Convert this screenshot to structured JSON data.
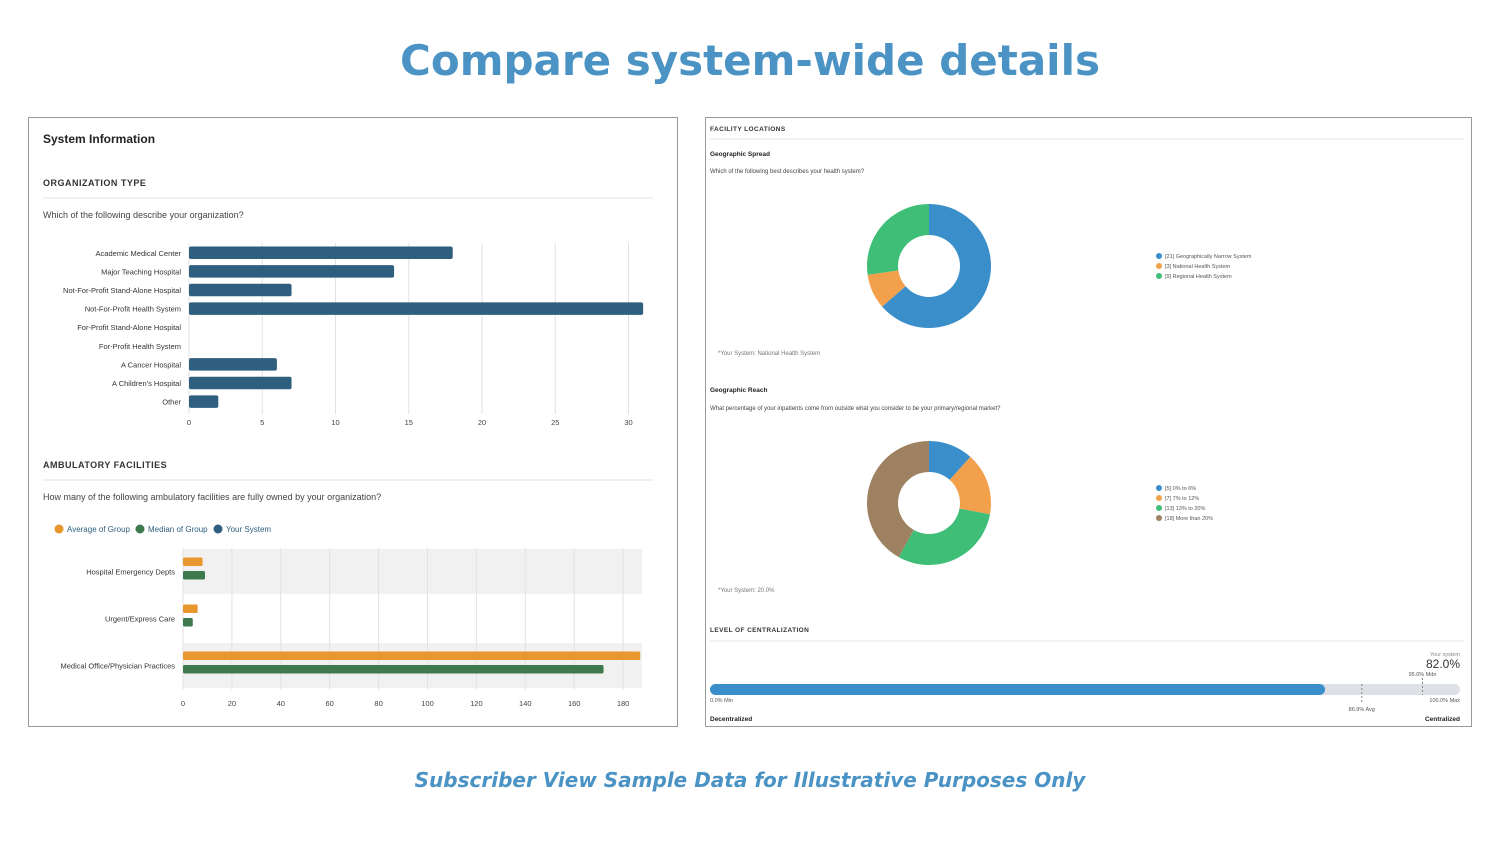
{
  "page": {
    "title": "Compare system-wide details",
    "footer": "Subscriber View Sample Data for Illustrative Purposes Only"
  },
  "left_panel": {
    "title": "System Information",
    "org_section": {
      "heading": "ORGANIZATION TYPE",
      "question": "Which of the following describe your organization?"
    },
    "amb_section": {
      "heading": "AMBULATORY FACILITIES",
      "question": "How many of the following ambulatory facilities are fully owned by your organization?",
      "legend": [
        {
          "label": "Average of Group",
          "color": "#e8962e"
        },
        {
          "label": "Median of Group",
          "color": "#3f7a4e"
        },
        {
          "label": "Your System",
          "color": "#2e5f7f"
        }
      ]
    }
  },
  "right_panel": {
    "section_heading": "FACILITY LOCATIONS",
    "spread": {
      "title": "Geographic Spread",
      "question": "Which of the following best describes your health system?",
      "note": "*Your System: National Health System"
    },
    "reach": {
      "title": "Geographic Reach",
      "question": "What percentage of your inpatients come from outside what you consider to be your primary/regional market?",
      "note": "*Your System: 20.0%"
    },
    "centralization": {
      "heading": "LEVEL OF CENTRALIZATION",
      "your_system_label": "Your system",
      "your_system_value": "82.0%",
      "your_system_fraction": 0.82,
      "min_label": "0.0% Min",
      "max_label": "100.0% Max",
      "avg_label": "86.9% Avg",
      "avg_fraction": 0.869,
      "mdn_label": "95.0% Mdn",
      "mdn_fraction": 0.95,
      "left_end": "Decentralized",
      "right_end": "Centralized",
      "bar_color": "#3a8fcb",
      "track_color": "#dde1e6"
    }
  },
  "chart_data": [
    {
      "type": "bar",
      "orientation": "horizontal",
      "categories": [
        "Academic Medical Center",
        "Major Teaching Hospital",
        "Not-For-Profit Stand-Alone Hospital",
        "Not-For-Profit Health System",
        "For-Profit Stand-Alone Hospital",
        "For-Profit Health System",
        "A Cancer Hospital",
        "A Children's Hospital",
        "Other"
      ],
      "values": [
        18,
        14,
        7,
        31,
        0,
        0,
        6,
        7,
        2
      ],
      "xlim": [
        0,
        31
      ],
      "xticks": [
        0,
        5,
        10,
        15,
        20,
        25,
        30
      ],
      "color": "#2e5f7f",
      "grid": true
    },
    {
      "type": "bar",
      "orientation": "horizontal",
      "categories": [
        "Hospital Emergency Depts",
        "Urgent/Express Care",
        "Medical Office/Physician Practices"
      ],
      "series": [
        {
          "name": "Average of Group",
          "values": [
            8,
            6,
            187
          ],
          "color": "#e8962e"
        },
        {
          "name": "Median of Group",
          "values": [
            9,
            4,
            172
          ],
          "color": "#3f7a4e"
        },
        {
          "name": "Your System",
          "values": [
            0,
            0,
            0
          ],
          "color": "#2e5f7f"
        }
      ],
      "xlim": [
        0,
        187
      ],
      "xticks": [
        0,
        20,
        40,
        60,
        80,
        100,
        120,
        140,
        160,
        180
      ],
      "grid": true
    },
    {
      "type": "pie",
      "donut": true,
      "labels": [
        "[21] Geographically Narrow System",
        "[3] National Health System",
        "[9] Regional Health System"
      ],
      "values": [
        21,
        3,
        9
      ],
      "colors": [
        "#3a8fcb",
        "#f2a04c",
        "#3fbe78"
      ],
      "legend": "right"
    },
    {
      "type": "pie",
      "donut": true,
      "labels": [
        "[5] 0% to 6%",
        "[7] 7% to 12%",
        "[13] 13% to 20%",
        "[18] More than 20%"
      ],
      "values": [
        5,
        7,
        13,
        18
      ],
      "colors": [
        "#3a8fcb",
        "#f2a04c",
        "#3fbe78",
        "#9e8160"
      ],
      "legend": "right"
    }
  ]
}
